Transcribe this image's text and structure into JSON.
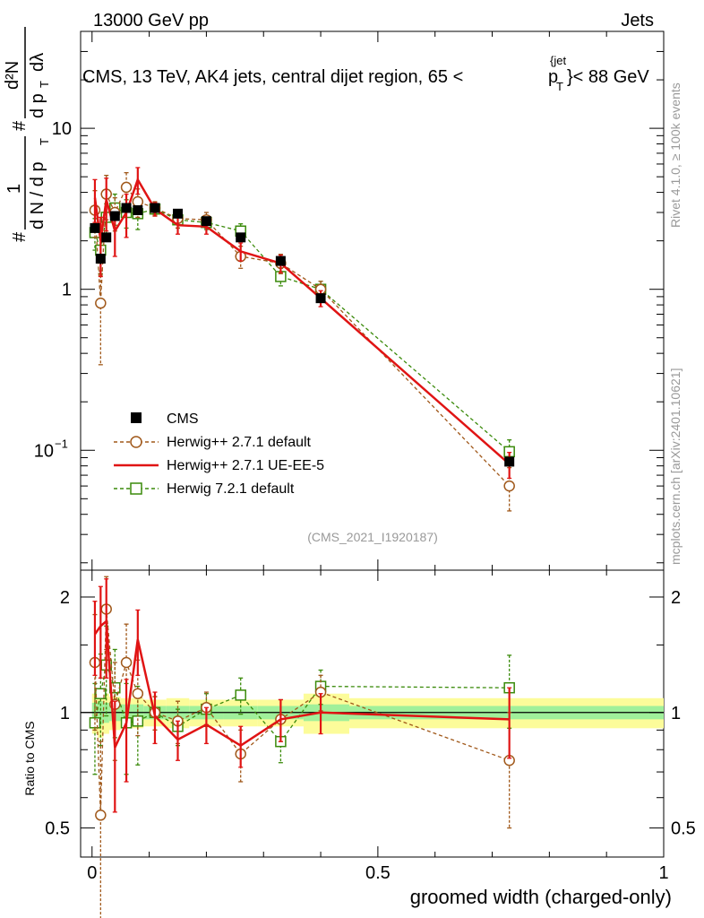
{
  "header": {
    "energy_label": "13000 GeV pp",
    "category_label": "Jets",
    "plot_title": "CMS, 13 TeV, AK4 jets, central dijet region, 65 < p_T^{jet} < 88 GeV",
    "title_main": "CMS, 13 TeV, AK4 jets, central dijet region, 65 <",
    "title_p": "p",
    "title_T": "T",
    "title_jet": "{jet",
    "title_close": "}< 88 GeV",
    "side_rivet": "Rivet 4.1.0, ≥ 100k events",
    "side_mcplots": "mcplots.cern.ch [arXiv:2401.10621]",
    "analysis_id": "(CMS_2021_I1920187)"
  },
  "colors": {
    "cms": "#000000",
    "herwig271_default": "#a0581a",
    "herwig271_ueee5": "#e01414",
    "herwig721_default": "#3a8a0a",
    "band_inner": "#a0f09a",
    "band_outer": "#fcfc9a"
  },
  "chart_data": [
    {
      "type": "scatter",
      "name": "main",
      "xlabel": "groomed width (charged-only)",
      "ylabel": "1/dN/dp_T # d²N/dp_T dλ",
      "ylabel_parts": {
        "hash": "#",
        "one": "1",
        "dN_dpT": "d N / d p",
        "T1": "T",
        "hash2": "#",
        "d2N": "d²N",
        "dpT": "d p",
        "T2": "T",
        "dlambda": "dλ"
      },
      "yscale": "log",
      "xlim": [
        -0.02,
        1.0
      ],
      "ylim": [
        0.018,
        40
      ],
      "x_ticks": [
        0,
        0.5,
        1
      ],
      "y_tick_labels": [
        {
          "value": 0.1,
          "label": "10",
          "exp": "−1"
        },
        {
          "value": 1,
          "label": "1"
        },
        {
          "value": 10,
          "label": "10"
        }
      ],
      "legend_position": "left-middle",
      "series": [
        {
          "name": "CMS",
          "marker": "filled-square",
          "color": "#000000",
          "x": [
            0.005,
            0.015,
            0.025,
            0.04,
            0.06,
            0.08,
            0.11,
            0.15,
            0.2,
            0.26,
            0.33,
            0.4,
            0.73
          ],
          "y": [
            2.4,
            1.55,
            2.1,
            2.85,
            3.2,
            3.1,
            3.2,
            2.95,
            2.65,
            2.1,
            1.5,
            0.88,
            0.085
          ],
          "err": [
            0.15,
            0.12,
            0.12,
            0.12,
            0.12,
            0.12,
            0.1,
            0.1,
            0.08,
            0.08,
            0.06,
            0.04,
            0.004
          ]
        },
        {
          "name": "Herwig++ 2.7.1 default",
          "marker": "open-circle",
          "color": "#a0581a",
          "dashed": true,
          "x": [
            0.005,
            0.015,
            0.025,
            0.04,
            0.06,
            0.08,
            0.11,
            0.15,
            0.2,
            0.26,
            0.33,
            0.4,
            0.73
          ],
          "y": [
            3.1,
            0.82,
            3.9,
            3.0,
            4.3,
            3.5,
            3.2,
            2.75,
            2.7,
            1.6,
            1.45,
            1.0,
            0.06
          ],
          "err": [
            1.0,
            0.48,
            1.2,
            0.7,
            1.0,
            0.7,
            0.3,
            0.35,
            0.3,
            0.25,
            0.2,
            0.12,
            0.018
          ]
        },
        {
          "name": "Herwig++ 2.7.1 UE-EE-5",
          "marker": "line",
          "color": "#e01414",
          "x": [
            0.005,
            0.015,
            0.025,
            0.04,
            0.06,
            0.08,
            0.11,
            0.15,
            0.2,
            0.26,
            0.33,
            0.4,
            0.73
          ],
          "y": [
            3.7,
            2.0,
            3.6,
            2.3,
            3.0,
            4.8,
            3.15,
            2.5,
            2.45,
            1.72,
            1.45,
            0.88,
            0.082
          ],
          "err": [
            1.1,
            0.8,
            1.3,
            0.7,
            0.9,
            0.9,
            0.3,
            0.3,
            0.25,
            0.22,
            0.18,
            0.1,
            0.015
          ]
        },
        {
          "name": "Herwig 7.2.1 default",
          "marker": "open-square",
          "color": "#3a8a0a",
          "dashed": true,
          "x": [
            0.005,
            0.015,
            0.025,
            0.04,
            0.06,
            0.08,
            0.11,
            0.15,
            0.2,
            0.26,
            0.33,
            0.4,
            0.73
          ],
          "y": [
            2.25,
            1.75,
            2.8,
            3.2,
            3.0,
            2.95,
            3.15,
            2.7,
            2.6,
            2.3,
            1.2,
            1.0,
            0.098
          ],
          "err": [
            0.5,
            0.5,
            0.6,
            0.7,
            0.6,
            0.6,
            0.3,
            0.3,
            0.25,
            0.25,
            0.15,
            0.12,
            0.018
          ]
        }
      ]
    },
    {
      "type": "scatter",
      "name": "ratio",
      "ylabel": "Ratio to CMS",
      "xlabel": "groomed width (charged-only)",
      "yscale": "log",
      "xlim": [
        -0.02,
        1.0
      ],
      "ylim": [
        0.42,
        2.35
      ],
      "y_ticks": [
        0.5,
        1,
        2
      ],
      "y_tick_labels": [
        "0.5",
        "1",
        "2"
      ],
      "x_ticks": [
        0,
        0.5,
        1
      ],
      "x_tick_labels": [
        "0",
        "0.5",
        "1"
      ],
      "bands": {
        "edges": [
          0.0,
          0.01,
          0.02,
          0.03,
          0.05,
          0.07,
          0.09,
          0.13,
          0.17,
          0.23,
          0.29,
          0.37,
          0.45,
          1.0
        ],
        "inner": [
          0.06,
          0.07,
          0.06,
          0.05,
          0.05,
          0.05,
          0.04,
          0.04,
          0.04,
          0.04,
          0.04,
          0.05,
          0.04
        ],
        "outer": [
          0.12,
          0.14,
          0.12,
          0.1,
          0.09,
          0.09,
          0.08,
          0.09,
          0.08,
          0.08,
          0.08,
          0.12,
          0.09
        ]
      },
      "series": [
        {
          "name": "Herwig++ 2.7.1 default",
          "color": "#a0581a",
          "x": [
            0.005,
            0.015,
            0.025,
            0.04,
            0.06,
            0.08,
            0.11,
            0.15,
            0.2,
            0.26,
            0.33,
            0.4,
            0.73
          ],
          "y": [
            1.35,
            0.54,
            1.86,
            1.05,
            1.35,
            1.12,
            1.0,
            0.95,
            1.03,
            0.78,
            0.96,
            1.13,
            0.75
          ],
          "err": [
            0.45,
            0.3,
            0.4,
            0.3,
            0.35,
            0.25,
            0.1,
            0.12,
            0.1,
            0.12,
            0.12,
            0.12,
            0.25
          ]
        },
        {
          "name": "Herwig++ 2.7.1 UE-EE-5",
          "color": "#e01414",
          "x": [
            0.005,
            0.015,
            0.025,
            0.04,
            0.06,
            0.08,
            0.11,
            0.15,
            0.2,
            0.26,
            0.33,
            0.4,
            0.73
          ],
          "y": [
            1.6,
            1.68,
            1.73,
            0.81,
            0.94,
            1.55,
            0.98,
            0.85,
            0.93,
            0.82,
            0.96,
            1.0,
            0.96
          ],
          "err": [
            0.35,
            0.45,
            0.5,
            0.26,
            0.28,
            0.3,
            0.15,
            0.1,
            0.1,
            0.1,
            0.12,
            0.12,
            0.2
          ]
        },
        {
          "name": "Herwig 7.2.1 default",
          "color": "#3a8a0a",
          "x": [
            0.005,
            0.015,
            0.025,
            0.04,
            0.06,
            0.08,
            0.11,
            0.15,
            0.2,
            0.26,
            0.33,
            0.4,
            0.73
          ],
          "y": [
            0.94,
            1.12,
            1.33,
            1.16,
            0.94,
            0.95,
            1.0,
            0.92,
            1.02,
            1.11,
            0.84,
            1.17,
            1.16
          ],
          "err": [
            0.25,
            0.3,
            0.35,
            0.3,
            0.25,
            0.22,
            0.1,
            0.1,
            0.1,
            0.12,
            0.1,
            0.12,
            0.25
          ]
        }
      ]
    }
  ]
}
